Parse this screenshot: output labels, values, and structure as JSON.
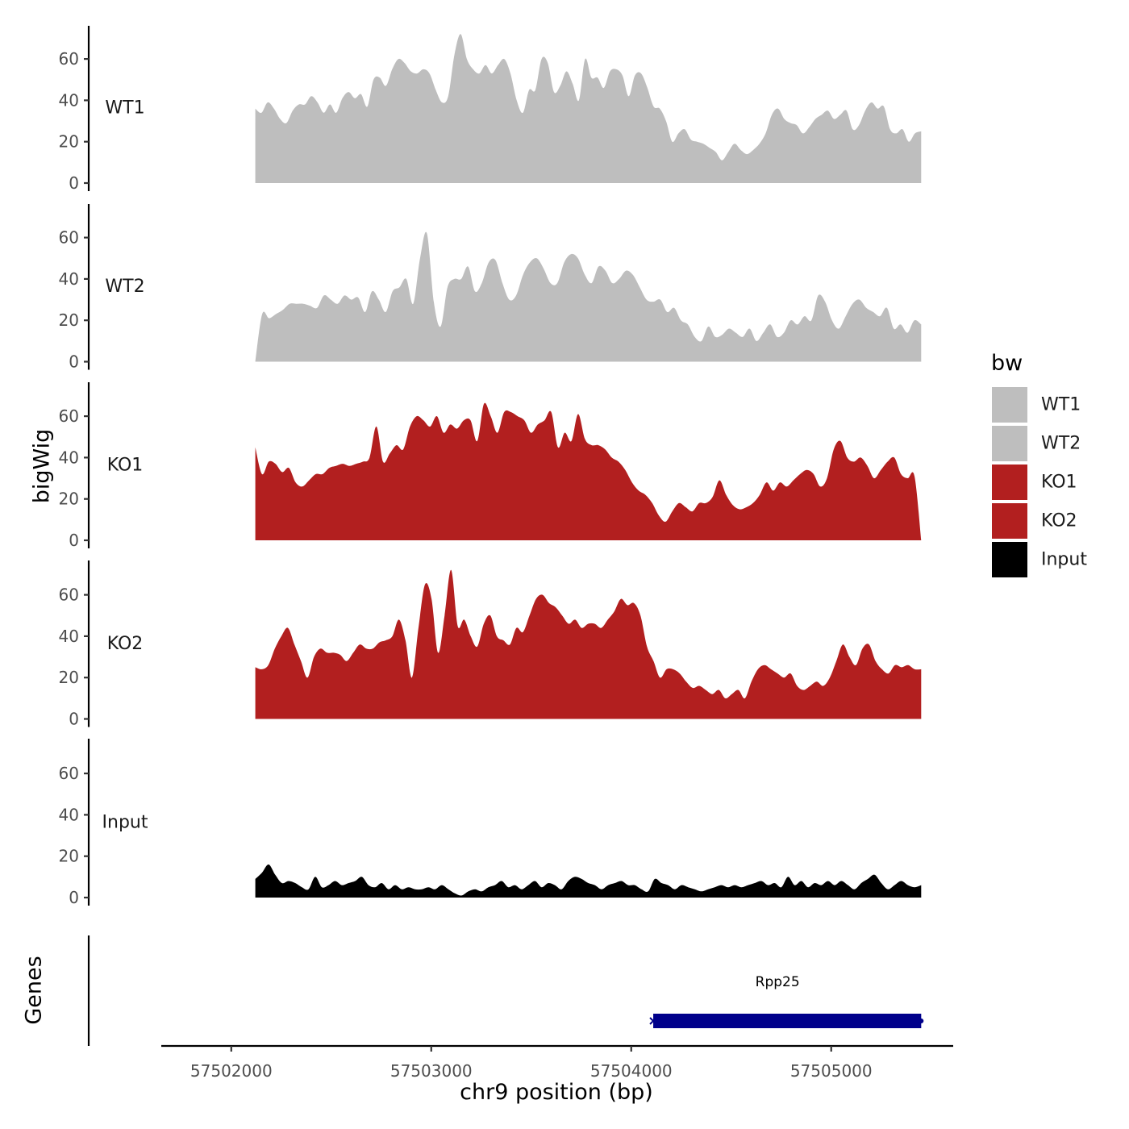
{
  "chart_data": {
    "type": "area",
    "ylabel": "bigWig",
    "xlabel": "chr9 position (bp)",
    "x_ticks": [
      57502000,
      57503000,
      57504000,
      57505000
    ],
    "xlim": [
      57501650,
      57505610
    ],
    "x_range": [
      57502120,
      57505450
    ],
    "ylim": [
      0,
      76
    ],
    "y_ticks": [
      0,
      20,
      40,
      60
    ],
    "legend": {
      "title": "bw",
      "position": "right",
      "entries": [
        {
          "label": "WT1",
          "color": "#bebebe"
        },
        {
          "label": "WT2",
          "color": "#bebebe"
        },
        {
          "label": "KO1",
          "color": "#b21f1f"
        },
        {
          "label": "KO2",
          "color": "#b21f1f"
        },
        {
          "label": "Input",
          "color": "#000000"
        }
      ]
    },
    "series": [
      {
        "name": "WT1",
        "color": "#bebebe",
        "values": [
          36,
          34,
          39,
          36,
          31,
          29,
          35,
          38,
          38,
          42,
          39,
          34,
          38,
          34,
          41,
          44,
          41,
          43,
          37,
          50,
          51,
          47,
          55,
          60,
          58,
          54,
          53,
          55,
          53,
          45,
          39,
          42,
          62,
          72,
          60,
          55,
          53,
          57,
          53,
          57,
          60,
          53,
          40,
          34,
          45,
          45,
          60,
          58,
          44,
          47,
          54,
          48,
          40,
          60,
          51,
          51,
          46,
          54,
          55,
          52,
          42,
          52,
          53,
          46,
          37,
          36,
          30,
          20,
          24,
          26,
          21,
          20,
          19,
          17,
          15,
          11,
          15,
          19,
          16,
          14,
          16,
          19,
          24,
          33,
          36,
          31,
          29,
          28,
          24,
          27,
          31,
          33,
          35,
          31,
          33,
          35,
          26,
          28,
          35,
          39,
          36,
          37,
          26,
          24,
          26,
          20,
          24,
          25
        ]
      },
      {
        "name": "WT2",
        "color": "#bebebe",
        "values": [
          0,
          23,
          21,
          23,
          25,
          28,
          28,
          28,
          27,
          26,
          32,
          30,
          28,
          32,
          30,
          31,
          24,
          34,
          30,
          24,
          34,
          36,
          40,
          28,
          50,
          62,
          29,
          17,
          36,
          40,
          40,
          46,
          34,
          38,
          48,
          49,
          38,
          30,
          32,
          42,
          48,
          50,
          45,
          38,
          38,
          48,
          52,
          50,
          42,
          38,
          46,
          44,
          38,
          40,
          44,
          42,
          36,
          30,
          29,
          30,
          24,
          26,
          20,
          18,
          12,
          10,
          17,
          12,
          13,
          16,
          14,
          12,
          16,
          10,
          14,
          18,
          12,
          14,
          20,
          18,
          22,
          20,
          32,
          29,
          20,
          16,
          22,
          28,
          30,
          26,
          24,
          22,
          26,
          16,
          18,
          14,
          20,
          18
        ]
      },
      {
        "name": "KO1",
        "color": "#b21f1f",
        "values": [
          45,
          32,
          38,
          37,
          33,
          35,
          28,
          26,
          29,
          32,
          32,
          35,
          36,
          37,
          36,
          37,
          38,
          40,
          55,
          38,
          42,
          46,
          44,
          55,
          60,
          58,
          55,
          60,
          52,
          56,
          54,
          58,
          58,
          48,
          66,
          60,
          52,
          62,
          62,
          60,
          58,
          52,
          56,
          58,
          62,
          45,
          52,
          48,
          61,
          49,
          46,
          46,
          44,
          40,
          38,
          34,
          28,
          24,
          22,
          18,
          12,
          9,
          14,
          18,
          16,
          14,
          18,
          18,
          21,
          29,
          22,
          17,
          15,
          16,
          18,
          22,
          28,
          24,
          28,
          26,
          29,
          32,
          34,
          32,
          26,
          30,
          44,
          48,
          40,
          38,
          40,
          36,
          30,
          34,
          38,
          40,
          32,
          30,
          31,
          0
        ]
      },
      {
        "name": "KO2",
        "color": "#b21f1f",
        "values": [
          25,
          24,
          26,
          34,
          40,
          44,
          36,
          28,
          20,
          30,
          34,
          32,
          32,
          31,
          28,
          32,
          36,
          34,
          34,
          37,
          38,
          40,
          48,
          38,
          20,
          44,
          65,
          58,
          32,
          50,
          72,
          45,
          48,
          40,
          35,
          46,
          50,
          40,
          38,
          36,
          44,
          42,
          50,
          58,
          60,
          56,
          54,
          50,
          46,
          48,
          44,
          46,
          46,
          44,
          48,
          52,
          58,
          55,
          56,
          50,
          35,
          28,
          20,
          24,
          24,
          22,
          18,
          15,
          16,
          14,
          12,
          14,
          10,
          12,
          14,
          10,
          18,
          24,
          26,
          24,
          22,
          20,
          22,
          16,
          14,
          16,
          18,
          16,
          20,
          28,
          36,
          30,
          26,
          34,
          36,
          28,
          24,
          22,
          26,
          25,
          26,
          24,
          24
        ]
      },
      {
        "name": "Input",
        "color": "#000000",
        "values": [
          9,
          12,
          16,
          11,
          7,
          8,
          7,
          5,
          4,
          10,
          5,
          6,
          8,
          6,
          7,
          8,
          10,
          6,
          5,
          7,
          4,
          6,
          4,
          5,
          4,
          4,
          5,
          4,
          6,
          4,
          2,
          1,
          3,
          4,
          3,
          5,
          6,
          8,
          5,
          6,
          4,
          6,
          8,
          5,
          7,
          6,
          4,
          8,
          10,
          9,
          7,
          6,
          4,
          6,
          7,
          8,
          6,
          6,
          4,
          3,
          9,
          7,
          6,
          4,
          6,
          5,
          4,
          3,
          4,
          5,
          6,
          5,
          6,
          5,
          6,
          7,
          8,
          6,
          7,
          5,
          10,
          6,
          8,
          5,
          7,
          6,
          8,
          6,
          8,
          6,
          4,
          7,
          9,
          11,
          7,
          4,
          6,
          8,
          6,
          5,
          6
        ]
      }
    ],
    "genes": {
      "ylabel": "Genes",
      "items": [
        {
          "name": "Rpp25",
          "start": 57504110,
          "end": 57505450,
          "color": "#00008b"
        }
      ]
    }
  }
}
